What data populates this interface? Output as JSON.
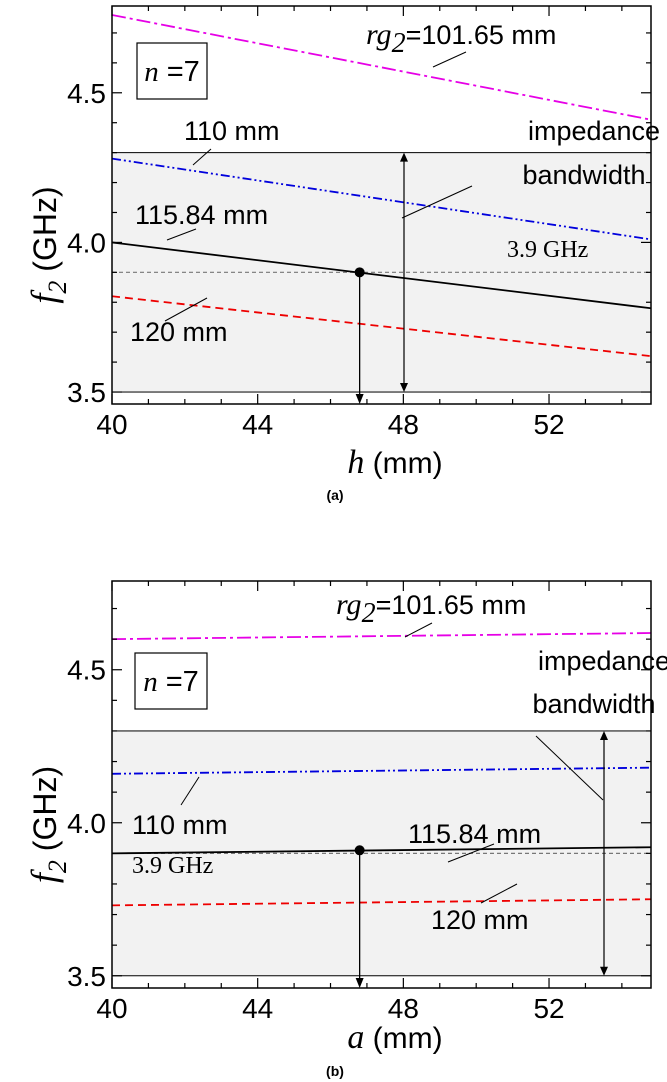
{
  "chart_data": [
    {
      "type": "line",
      "panel_label": "(a)",
      "xlabel_var": "h",
      "xlabel_unit": " (mm)",
      "ylabel_var": "f",
      "ylabel_sub": "2",
      "ylabel_unit": " (GHz)",
      "xlim": [
        40,
        54.8
      ],
      "ylim": [
        3.46,
        4.79
      ],
      "xticks": [
        40,
        44,
        48,
        52
      ],
      "yticks": [
        3.5,
        4.0,
        4.5
      ],
      "box_label": "n =7",
      "band": {
        "y0": 3.5,
        "y1": 4.3,
        "label_line1": "impedance",
        "label_line2": "bandwidth"
      },
      "ref_line": {
        "y": 3.9,
        "label": "3.9 GHz"
      },
      "marker": {
        "x": 46.8,
        "y": 3.9
      },
      "series": [
        {
          "name": "rg2=101.65 mm",
          "label_prefix": "rg",
          "label_sub": "2",
          "label_rest": "=101.65 mm",
          "color": "#e600e6",
          "dash": "14 4 3 4",
          "x": [
            40,
            54.8
          ],
          "y": [
            4.76,
            4.41
          ]
        },
        {
          "name": "110 mm",
          "label_prefix": "",
          "label_sub": "",
          "label_rest": "110 mm",
          "color": "#0000dd",
          "dash": "9 3 2 3 2 3",
          "x": [
            40,
            54.8
          ],
          "y": [
            4.28,
            4.01
          ]
        },
        {
          "name": "115.84 mm",
          "label_prefix": "",
          "label_sub": "",
          "label_rest": "115.84 mm",
          "color": "#000000",
          "dash": "",
          "x": [
            40,
            54.8
          ],
          "y": [
            4.0,
            3.78
          ]
        },
        {
          "name": "120 mm",
          "label_prefix": "",
          "label_sub": "",
          "label_rest": "120 mm",
          "color": "#ee0000",
          "dash": "8 5",
          "x": [
            40,
            54.8
          ],
          "y": [
            3.82,
            3.62
          ]
        }
      ]
    },
    {
      "type": "line",
      "panel_label": "(b)",
      "xlabel_var": "a",
      "xlabel_unit": " (mm)",
      "ylabel_var": "f",
      "ylabel_sub": "2",
      "ylabel_unit": " (GHz)",
      "xlim": [
        40,
        54.8
      ],
      "ylim": [
        3.46,
        4.79
      ],
      "xticks": [
        40,
        44,
        48,
        52
      ],
      "yticks": [
        3.5,
        4.0,
        4.5
      ],
      "box_label": "n =7",
      "band": {
        "y0": 3.5,
        "y1": 4.3,
        "label_line1": "impedance",
        "label_line2": "bandwidth"
      },
      "ref_line": {
        "y": 3.9,
        "label": "3.9 GHz"
      },
      "marker": {
        "x": 46.8,
        "y": 3.91
      },
      "series": [
        {
          "name": "rg2=101.65 mm",
          "label_prefix": "rg",
          "label_sub": "2",
          "label_rest": "=101.65 mm",
          "color": "#e600e6",
          "dash": "14 4 3 4",
          "x": [
            40,
            54.8
          ],
          "y": [
            4.6,
            4.62
          ]
        },
        {
          "name": "110 mm",
          "label_prefix": "",
          "label_sub": "",
          "label_rest": "110 mm",
          "color": "#0000dd",
          "dash": "9 3 2 3 2 3",
          "x": [
            40,
            54.8
          ],
          "y": [
            4.16,
            4.18
          ]
        },
        {
          "name": "115.84 mm",
          "label_prefix": "",
          "label_sub": "",
          "label_rest": "115.84 mm",
          "color": "#000000",
          "dash": "",
          "x": [
            40,
            54.8
          ],
          "y": [
            3.9,
            3.92
          ]
        },
        {
          "name": "120 mm",
          "label_prefix": "",
          "label_sub": "",
          "label_rest": "120 mm",
          "color": "#ee0000",
          "dash": "8 5",
          "x": [
            40,
            54.8
          ],
          "y": [
            3.73,
            3.75
          ]
        }
      ]
    }
  ]
}
